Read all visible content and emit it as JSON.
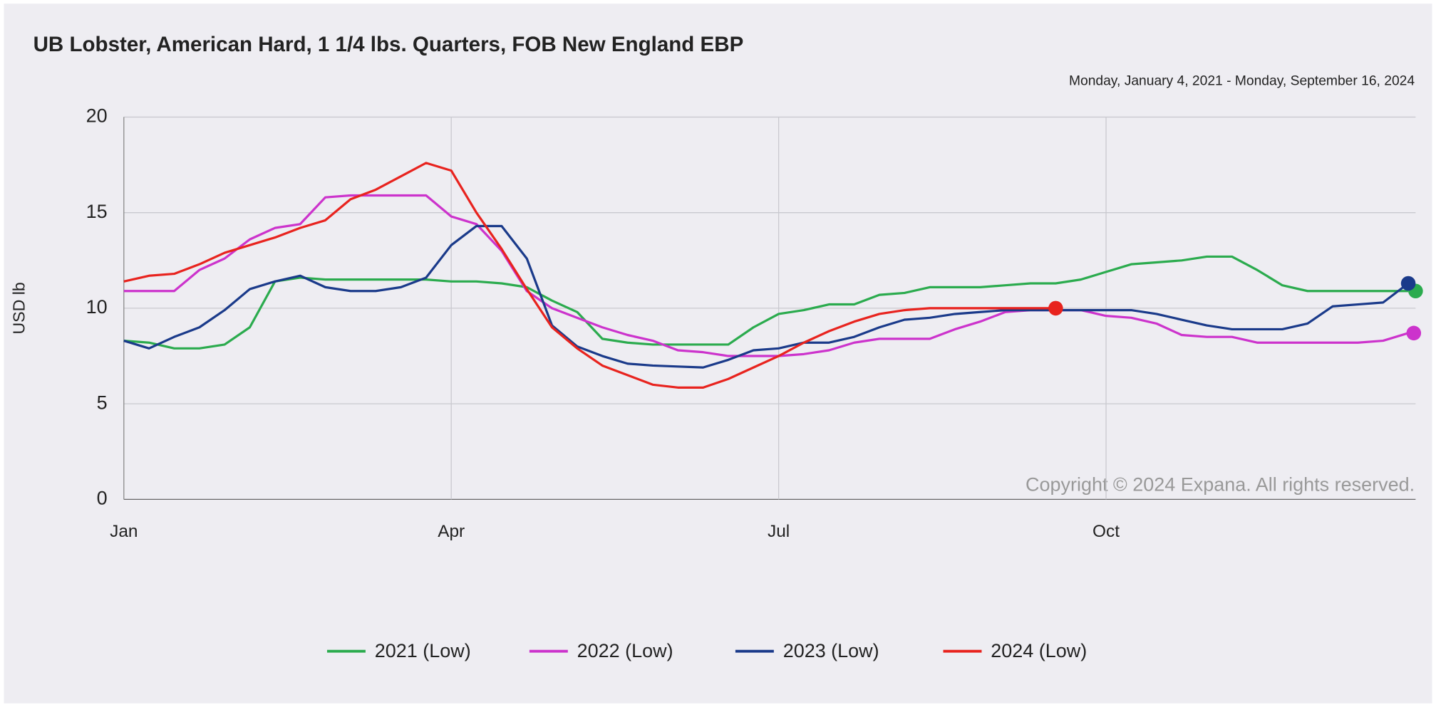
{
  "chart_data": {
    "type": "line",
    "title": "UB Lobster, American Hard, 1 1/4 lbs. Quarters, FOB New England EBP",
    "subtitle": "Monday, January 4, 2021 - Monday, September 16, 2024",
    "y_label": "USD lb",
    "annotation": "Copyright © 2024 Expana. All rights reserved.",
    "categories": [
      "Jan",
      null,
      null,
      null,
      null,
      null,
      null,
      null,
      null,
      null,
      null,
      null,
      null,
      "Apr",
      null,
      null,
      null,
      null,
      null,
      null,
      null,
      null,
      null,
      null,
      null,
      null,
      "Jul",
      null,
      null,
      null,
      null,
      null,
      null,
      null,
      null,
      null,
      null,
      null,
      null,
      "Oct",
      null,
      null,
      null,
      null,
      null,
      null,
      null,
      null,
      null,
      null,
      null,
      null
    ],
    "ylim": [
      0,
      20
    ],
    "yticks": [
      0,
      5,
      10,
      15,
      20
    ],
    "grid": true,
    "legend": "bottom",
    "series": [
      {
        "name": "2021 (Low)",
        "color": "#2bab4e",
        "values": [
          8.3,
          8.2,
          7.9,
          7.9,
          8.1,
          9.0,
          11.4,
          11.6,
          11.5,
          11.5,
          11.5,
          11.5,
          11.5,
          11.4,
          11.4,
          11.3,
          11.1,
          10.4,
          9.8,
          8.4,
          8.2,
          8.1,
          8.1,
          8.1,
          8.1,
          9.0,
          9.7,
          9.9,
          10.2,
          10.2,
          10.7,
          10.8,
          11.1,
          11.1,
          11.1,
          11.2,
          11.3,
          11.3,
          11.5,
          11.9,
          12.3,
          12.4,
          12.5,
          12.7,
          12.7,
          12.0,
          11.2,
          10.9,
          10.9,
          10.9,
          10.9,
          10.9
        ]
      },
      {
        "name": "2022 (Low)",
        "color": "#cc33cc",
        "values": [
          10.9,
          10.9,
          10.9,
          12.0,
          12.6,
          13.6,
          14.2,
          14.4,
          15.8,
          15.9,
          15.9,
          15.9,
          15.9,
          14.8,
          14.4,
          13.0,
          10.9,
          10.0,
          9.5,
          9.0,
          8.6,
          8.3,
          7.8,
          7.7,
          7.5,
          7.5,
          7.5,
          7.6,
          7.8,
          8.2,
          8.4,
          8.4,
          8.4,
          8.9,
          9.3,
          9.8,
          9.9,
          9.9,
          9.9,
          9.6,
          9.5,
          9.2,
          8.6,
          8.5,
          8.5,
          8.2,
          8.2,
          8.2,
          8.2,
          8.2,
          8.3,
          8.7
        ]
      },
      {
        "name": "2023 (Low)",
        "color": "#1a3a8a",
        "values": [
          8.3,
          7.9,
          8.5,
          9.0,
          9.9,
          11.0,
          11.4,
          11.7,
          11.1,
          10.9,
          10.9,
          11.1,
          11.6,
          13.3,
          14.3,
          14.3,
          12.6,
          9.1,
          8.0,
          7.5,
          7.1,
          7.0,
          6.95,
          6.9,
          7.3,
          7.8,
          7.9,
          8.2,
          8.2,
          8.5,
          9.0,
          9.4,
          9.5,
          9.7,
          9.8,
          9.9,
          9.9,
          9.9,
          9.9,
          9.9,
          9.9,
          9.7,
          9.4,
          9.1,
          8.9,
          8.9,
          8.9,
          9.2,
          10.1,
          10.2,
          10.3,
          11.3
        ]
      },
      {
        "name": "2024 (Low)",
        "color": "#e8231e",
        "values": [
          11.4,
          11.7,
          11.8,
          12.3,
          12.9,
          13.3,
          13.7,
          14.2,
          14.6,
          15.7,
          16.2,
          16.9,
          17.6,
          17.2,
          15.0,
          13.1,
          11.0,
          9.0,
          7.9,
          7.0,
          6.5,
          6.0,
          5.85,
          5.85,
          6.3,
          6.9,
          7.5,
          8.2,
          8.8,
          9.3,
          9.7,
          9.9,
          10.0,
          10.0,
          10.0,
          10.0,
          10.0,
          10.0,
          null,
          null,
          null,
          null,
          null,
          null,
          null,
          null,
          null,
          null,
          null,
          null,
          null,
          null
        ]
      }
    ]
  }
}
